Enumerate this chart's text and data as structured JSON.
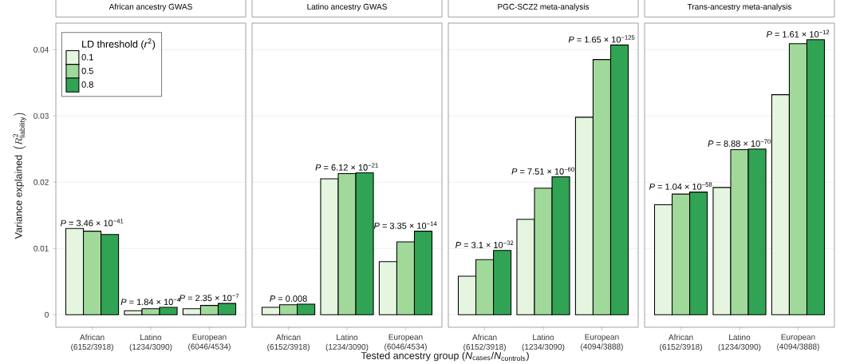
{
  "chart_data": [
    {
      "type": "bar",
      "title": "African ancestry GWAS",
      "ylabel": "\\mbox{Variance explained }\\left(R^{2}_{\\mathrm{liability}}\\right)",
      "categories": [
        "African (6152/3918)",
        "Latino (1234/3090)",
        "European (6046/4534)"
      ],
      "series": [
        {
          "name": "0.1",
          "color": "#e5f5e0",
          "values": [
            0.013,
            0.0006,
            0.0009
          ]
        },
        {
          "name": "0.5",
          "color": "#a1d99b",
          "values": [
            0.0126,
            0.0009,
            0.0014
          ]
        },
        {
          "name": "0.8",
          "color": "#31a354",
          "values": [
            0.0121,
            0.0011,
            0.0017
          ]
        }
      ],
      "legend": "top left",
      "legend_title": "LD threshold (*r*$^{2}$)",
      "ylim": [
        -0.0019,
        0.044
      ],
      "yticks": [
        0,
        0.01,
        0.02,
        0.03,
        0.04
      ],
      "grid": "y",
      "annotations": [
        "*P* = 3.46 × 10$^{−41}$",
        "*P* = 1.84 × 10$^{−4}$",
        "*P* = 2.35 × 10$^{−7}$"
      ]
    },
    {
      "type": "bar",
      "title": "Latino ancestry GWAS",
      "xlabel": "Tested ancestry group (*N*$_{cases}$/*N*$_{controls}$)",
      "categories": [
        "African (6152/3918)",
        "Latino (1234/3090)",
        "European (6046/4534)"
      ],
      "series": [
        {
          "color": "#e5f5e0",
          "values": [
            0.0011,
            0.0205,
            0.008
          ]
        },
        {
          "color": "#a1d99b",
          "values": [
            0.0015,
            0.0213,
            0.011
          ]
        },
        {
          "color": "#31a354",
          "values": [
            0.0016,
            0.0214,
            0.0126
          ]
        }
      ],
      "ylim": [
        -0.0019,
        0.044
      ],
      "yticks": [
        0,
        0.01,
        0.02,
        0.03,
        0.04
      ],
      "grid": "y",
      "tick_labels": "x",
      "annotations": [
        "*P* = 0.008",
        "*P* = 6.12 × 10$^{−21}$",
        "*P* = 3.35 × 10$^{−14}$"
      ]
    },
    {
      "type": "bar",
      "title": "PGC-SCZ2 meta-analysis",
      "categories": [
        "African (6152/3918)",
        "Latino (1234/3090)",
        "European (4094/3888)"
      ],
      "series": [
        {
          "color": "#e5f5e0",
          "values": [
            0.0058,
            0.0144,
            0.0298
          ]
        },
        {
          "color": "#a1d99b",
          "values": [
            0.0083,
            0.0191,
            0.0385
          ]
        },
        {
          "color": "#31a354",
          "values": [
            0.0097,
            0.0208,
            0.0407
          ]
        }
      ],
      "ylim": [
        -0.0019,
        0.044
      ],
      "yticks": [
        0,
        0.01,
        0.02,
        0.03,
        0.04
      ],
      "grid": "y",
      "tick_labels": "x",
      "annotations": [
        "*P* = 3.1 × 10$^{−32}$",
        "*P* = 7.51 × 10$^{−60}$",
        "*P* = 1.65 × 10$^{−125}$"
      ]
    },
    {
      "type": "bar",
      "title": "Trans-ancestry meta-analysis",
      "categories": [
        "African (6152/3918)",
        "Latino (1234/3090)",
        "European (4094/3888)"
      ],
      "series": [
        {
          "color": "#e5f5e0",
          "values": [
            0.0166,
            0.0192,
            0.0332
          ]
        },
        {
          "color": "#a1d99b",
          "values": [
            0.0182,
            0.0249,
            0.0409
          ]
        },
        {
          "color": "#31a354",
          "values": [
            0.0185,
            0.025,
            0.0415
          ]
        }
      ],
      "ylim": [
        -0.0019,
        0.044
      ],
      "yticks": [
        0,
        0.01,
        0.02,
        0.03,
        0.04
      ],
      "grid": "y",
      "tick_labels": "x",
      "annotations": [
        "*P* = 1.04 × 10$^{−58}$",
        "*P* = 8.88 × 10$^{−70}$",
        "*P* = 1.61 × 10$^{−12}$"
      ]
    }
  ]
}
